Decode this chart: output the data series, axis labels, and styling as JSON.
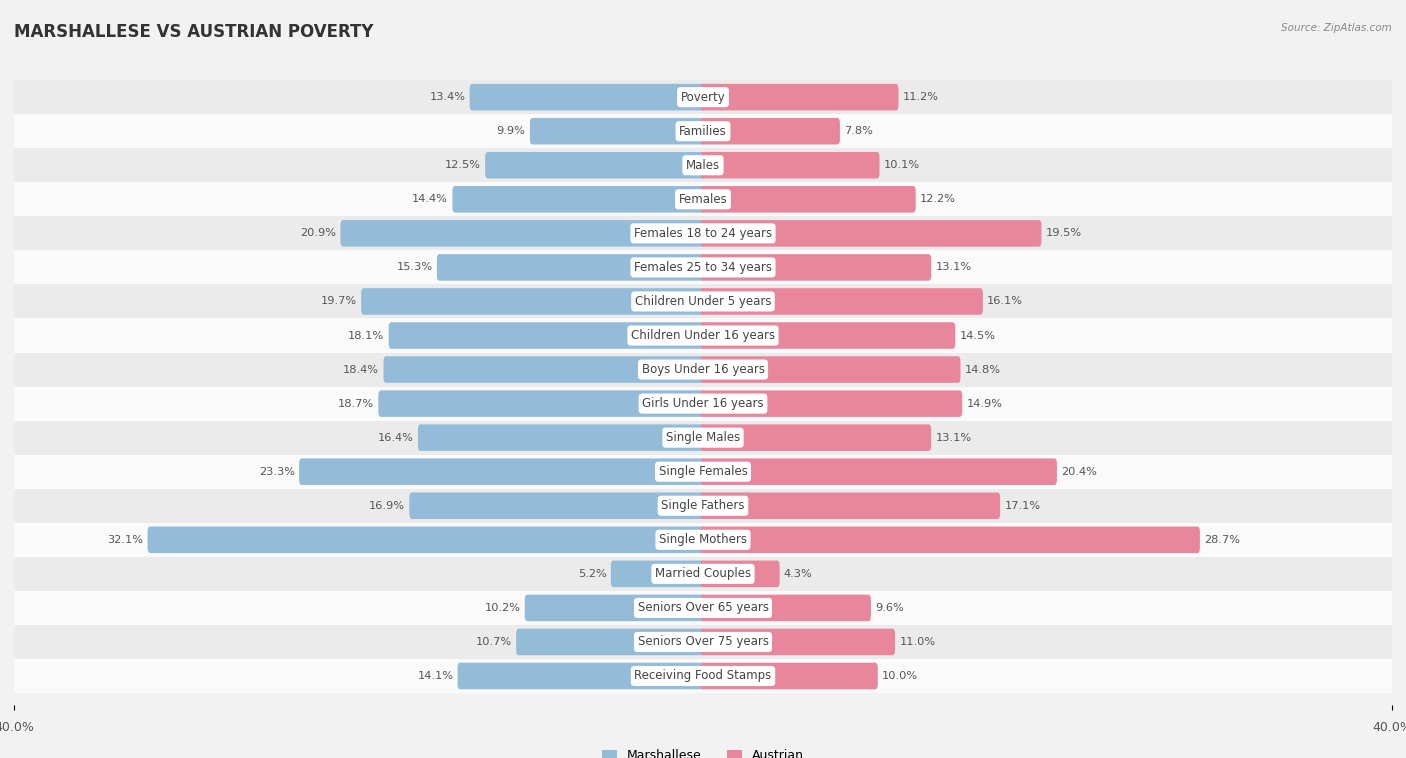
{
  "title": "MARSHALLESE VS AUSTRIAN POVERTY",
  "source": "Source: ZipAtlas.com",
  "categories": [
    "Poverty",
    "Families",
    "Males",
    "Females",
    "Females 18 to 24 years",
    "Females 25 to 34 years",
    "Children Under 5 years",
    "Children Under 16 years",
    "Boys Under 16 years",
    "Girls Under 16 years",
    "Single Males",
    "Single Females",
    "Single Fathers",
    "Single Mothers",
    "Married Couples",
    "Seniors Over 65 years",
    "Seniors Over 75 years",
    "Receiving Food Stamps"
  ],
  "marshallese": [
    13.4,
    9.9,
    12.5,
    14.4,
    20.9,
    15.3,
    19.7,
    18.1,
    18.4,
    18.7,
    16.4,
    23.3,
    16.9,
    32.1,
    5.2,
    10.2,
    10.7,
    14.1
  ],
  "austrian": [
    11.2,
    7.8,
    10.1,
    12.2,
    19.5,
    13.1,
    16.1,
    14.5,
    14.8,
    14.9,
    13.1,
    20.4,
    17.1,
    28.7,
    4.3,
    9.6,
    11.0,
    10.0
  ],
  "max_val": 40.0,
  "bar_color_marshallese": "#94bcd8",
  "bar_color_austrian": "#e8879c",
  "bg_color": "#f2f2f2",
  "row_bg_light": "#fafafa",
  "row_bg_dark": "#ebebeb",
  "bar_height": 0.48,
  "label_fontsize": 8.5,
  "title_fontsize": 12,
  "value_label_fontsize": 8.2,
  "label_text_color": "#444444",
  "value_text_color": "#555555"
}
